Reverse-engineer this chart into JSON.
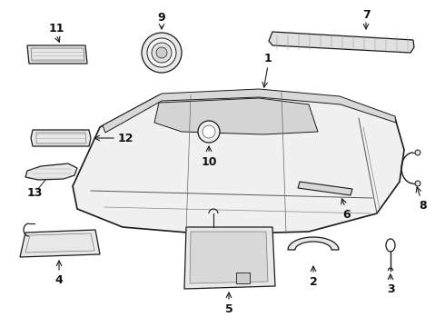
{
  "background_color": "#ffffff",
  "fig_width": 4.9,
  "fig_height": 3.6,
  "dpi": 100,
  "line_color": "#1a1a1a",
  "fill_color": "#f2f2f2",
  "gray_fill": "#d8d8d8"
}
